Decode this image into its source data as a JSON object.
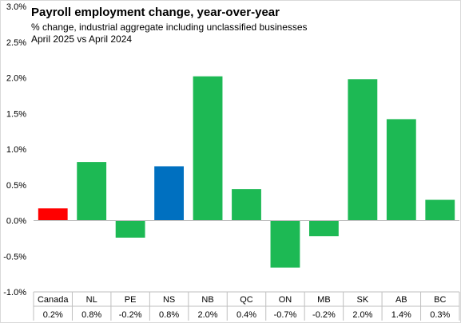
{
  "chart_data": {
    "type": "bar",
    "title": "Payroll employment change, year-over-year",
    "subtitle_lines": [
      "% change, industrial aggregate  including unclassified businesses",
      "April 2025 vs April 2024"
    ],
    "categories": [
      "Canada",
      "NL",
      "PE",
      "NS",
      "NB",
      "QC",
      "ON",
      "MB",
      "SK",
      "AB",
      "BC"
    ],
    "values": [
      0.17,
      0.82,
      -0.24,
      0.76,
      2.02,
      0.44,
      -0.66,
      -0.22,
      1.98,
      1.42,
      0.29
    ],
    "table_labels": [
      "0.2%",
      "0.8%",
      "-0.2%",
      "0.8%",
      "2.0%",
      "0.4%",
      "-0.7%",
      "-0.2%",
      "2.0%",
      "1.4%",
      "0.3%"
    ],
    "bar_colors": [
      "#ff0000",
      "#1db954",
      "#1db954",
      "#0070c0",
      "#1db954",
      "#1db954",
      "#1db954",
      "#1db954",
      "#1db954",
      "#1db954",
      "#1db954"
    ],
    "yticks": [
      "3.0%",
      "2.5%",
      "2.0%",
      "1.5%",
      "1.0%",
      "0.5%",
      "0.0%",
      "-0.5%",
      "-1.0%"
    ],
    "ytick_values": [
      3.0,
      2.5,
      2.0,
      1.5,
      1.0,
      0.5,
      0.0,
      -0.5,
      -1.0
    ],
    "ylim": [
      -1.0,
      3.0
    ],
    "grid": false,
    "legend": "none"
  }
}
